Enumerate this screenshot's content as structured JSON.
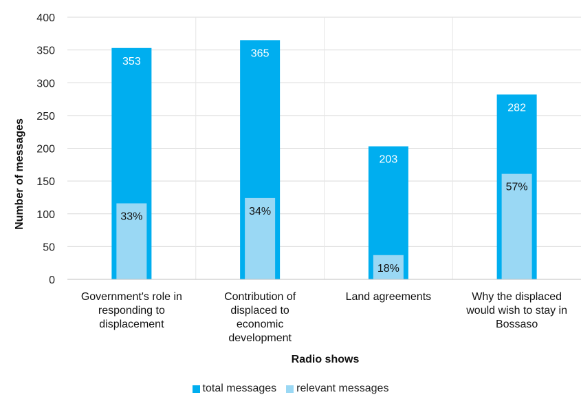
{
  "chart_data": {
    "type": "bar",
    "xlabel": "Radio shows",
    "ylabel": "Number of messages",
    "ylim": [
      0,
      400
    ],
    "yticks": [
      0,
      50,
      100,
      150,
      200,
      250,
      300,
      350,
      400
    ],
    "categories": [
      [
        "Government's role in",
        "responding to",
        "displacement"
      ],
      [
        "Contribution of",
        "displaced to",
        "economic",
        "development"
      ],
      [
        "Land agreements"
      ],
      [
        "Why the displaced",
        "would wish to stay in",
        "Bossaso"
      ]
    ],
    "series": [
      {
        "name": "total messages",
        "color": "#00aeef",
        "values": [
          353,
          365,
          203,
          282
        ],
        "labels": [
          "353",
          "365",
          "203",
          "282"
        ]
      },
      {
        "name": "relevant messages",
        "color": "#9ad8f4",
        "values": [
          116,
          124,
          37,
          161
        ],
        "labels": [
          "33%",
          "34%",
          "18%",
          "57%"
        ]
      }
    ],
    "grid": true,
    "legend_position": "bottom"
  }
}
